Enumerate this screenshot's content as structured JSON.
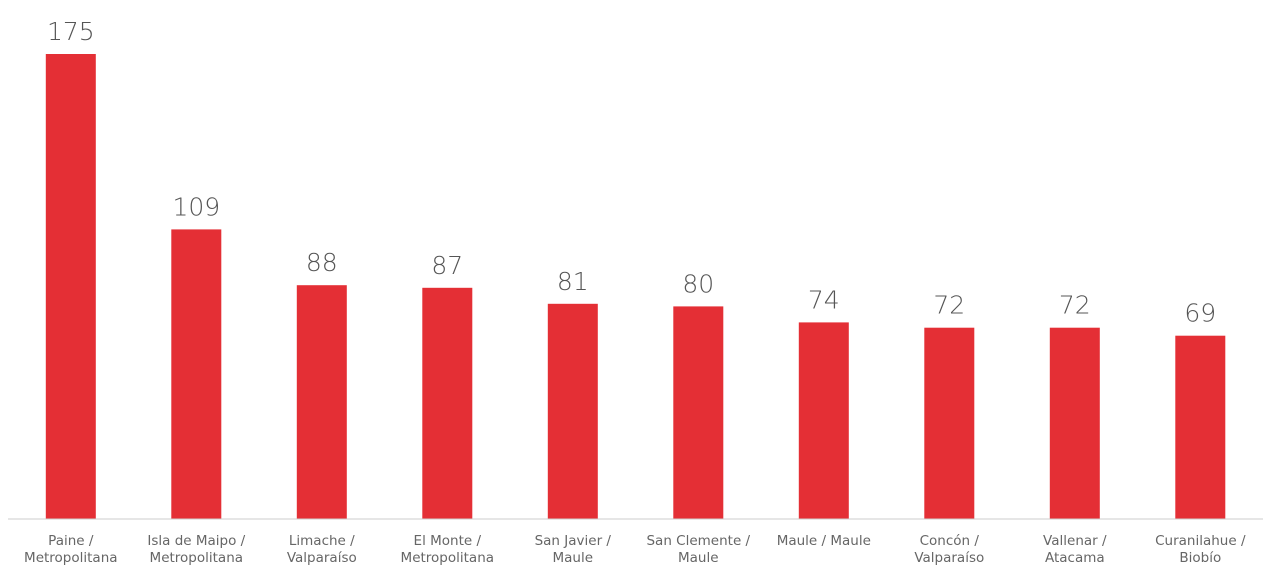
{
  "chart_data": {
    "type": "bar",
    "categories": [
      [
        "Paine /",
        "Metropolitana"
      ],
      [
        "Isla de Maipo /",
        "Metropolitana"
      ],
      [
        "Limache /",
        "Valparaíso"
      ],
      [
        "El Monte /",
        "Metropolitana"
      ],
      [
        "San Javier /",
        "Maule"
      ],
      [
        "San Clemente /",
        "Maule"
      ],
      [
        "Maule / Maule"
      ],
      [
        "Concón /",
        "Valparaíso"
      ],
      [
        "Vallenar /",
        "Atacama"
      ],
      [
        "Curanilahue /",
        "Biobío"
      ]
    ],
    "values": [
      175,
      109,
      88,
      87,
      81,
      80,
      74,
      72,
      72,
      69
    ],
    "value_labels": [
      "175",
      "109",
      "88",
      "87",
      "81",
      "80",
      "74",
      "72",
      "72",
      "69"
    ],
    "ylim": [
      0,
      175
    ],
    "grid": false,
    "bar_color": "#e42f35",
    "baseline_color": "#cccccc"
  }
}
